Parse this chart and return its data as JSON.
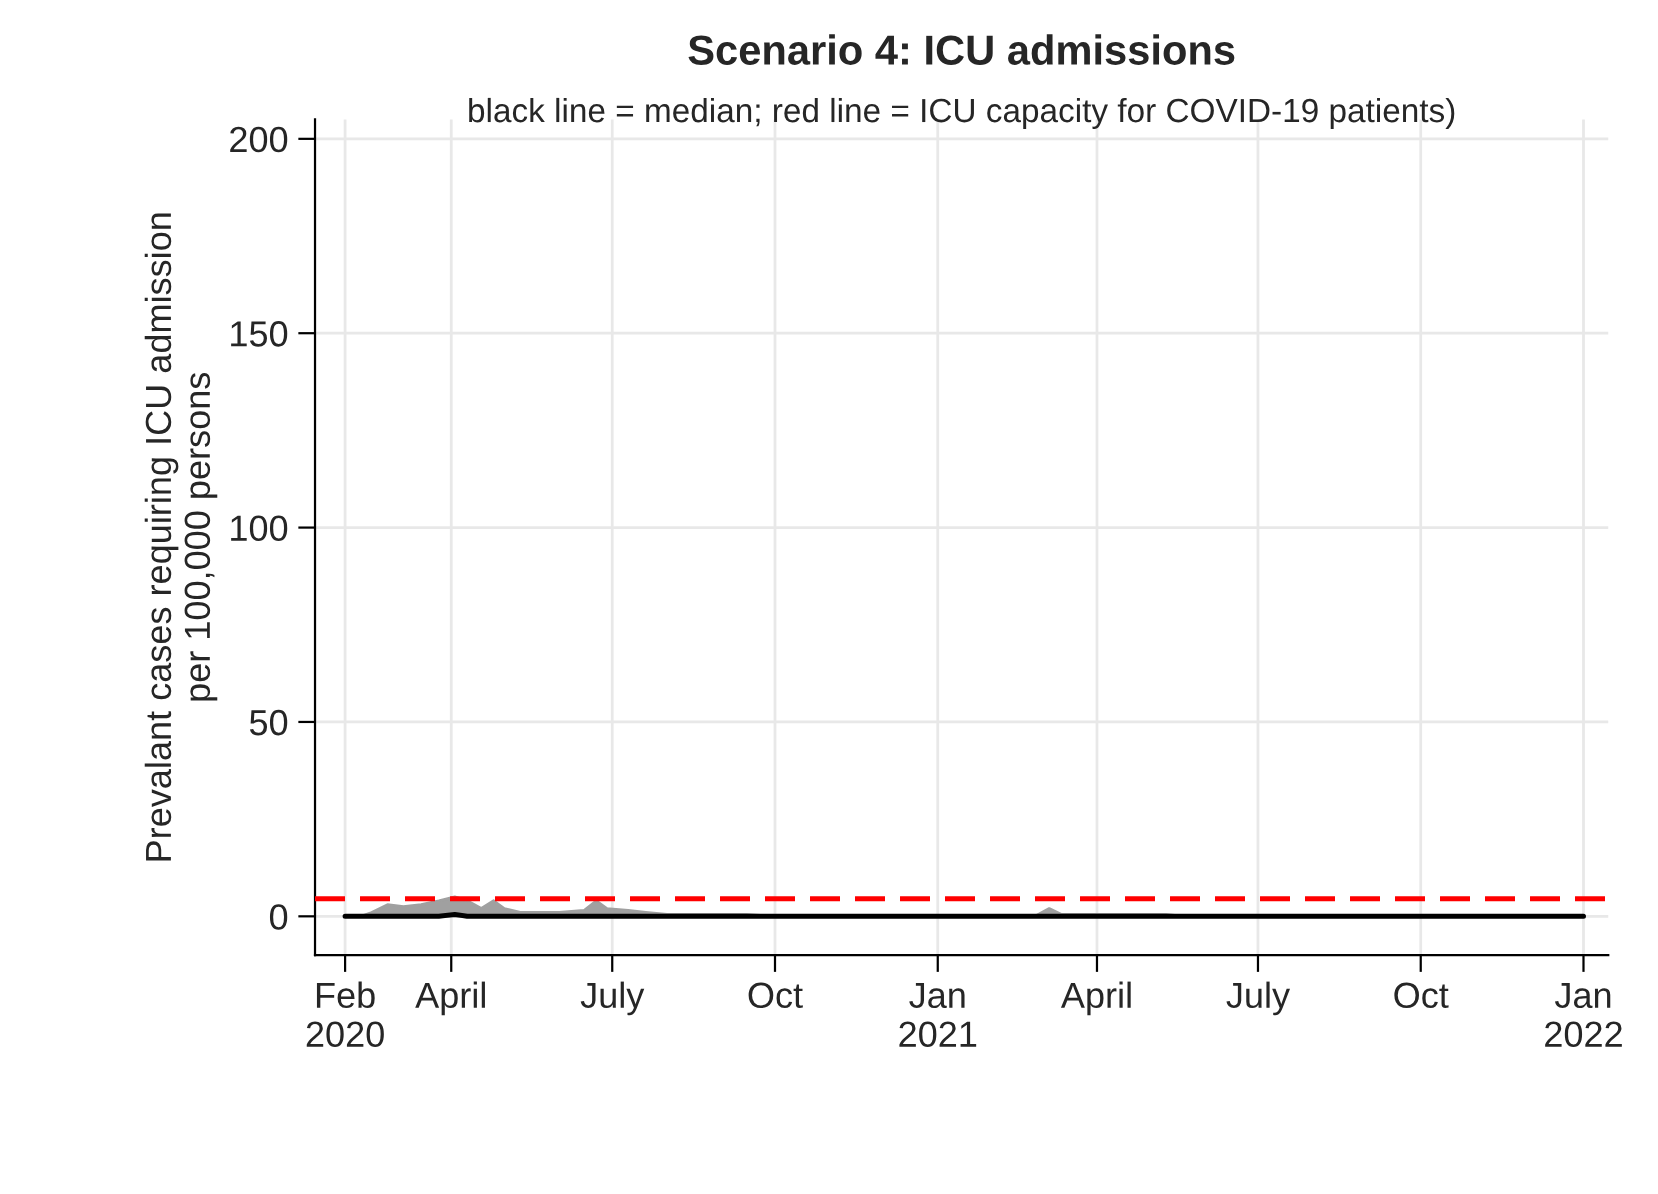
{
  "chart_data": {
    "type": "line",
    "title": "Scenario 4: ICU admissions",
    "subtitle": "black line = median; red line = ICU capacity for COVID-19 patients)",
    "ylabel": "Prevalant cases requiring ICU admission\nper 100,000 persons",
    "series": [
      {
        "color": "#000000",
        "x": [
          "2020-02-01",
          "2020-02-10",
          "2020-02-16",
          "2020-02-25",
          "2020-03-05",
          "2020-03-15",
          "2020-03-25",
          "2020-04-03",
          "2020-04-10",
          "2020-04-18",
          "2020-04-25",
          "2020-05-01",
          "2020-05-10",
          "2020-06-01",
          "2020-06-15",
          "2020-06-22",
          "2020-06-28",
          "2020-07-10",
          "2020-07-20",
          "2020-08-01",
          "2020-08-15",
          "2020-09-15",
          "2020-10-01",
          "2021-02-25",
          "2021-03-05",
          "2021-03-12",
          "2021-05-10",
          "2021-05-20",
          "2022-01-01"
        ],
        "values": [
          0,
          0,
          0,
          0,
          0,
          0,
          0,
          0.5,
          0,
          0,
          0,
          0,
          0,
          0,
          0,
          0,
          0,
          0,
          0,
          0,
          0,
          0,
          0,
          0,
          0,
          0,
          0,
          0,
          0
        ],
        "lower": [
          0,
          0,
          0,
          0,
          0,
          0,
          0,
          0,
          0,
          0,
          0,
          0,
          0,
          0,
          0,
          0,
          0,
          0,
          0,
          0,
          0,
          0,
          0,
          0,
          0,
          0,
          0,
          0,
          0
        ],
        "upper": [
          0,
          0,
          1,
          3,
          2.5,
          3,
          4,
          5,
          4,
          2,
          4,
          2,
          1,
          1,
          1.5,
          4,
          2,
          1.5,
          1,
          0.5,
          0.5,
          0.5,
          0,
          0,
          2,
          0.5,
          0.5,
          0,
          0
        ]
      }
    ],
    "ref_lines": [
      {
        "axis": "y",
        "value": 4.5,
        "color": "#ff0000",
        "line_style": "dashed"
      }
    ],
    "xlim": [
      "2020-01-15",
      "2022-01-15"
    ],
    "xticks": [
      {
        "value": "2020-02-01",
        "label": "Feb\n2020"
      },
      {
        "value": "2020-04-01",
        "label": "April"
      },
      {
        "value": "2020-07-01",
        "label": "July"
      },
      {
        "value": "2020-10-01",
        "label": "Oct"
      },
      {
        "value": "2021-01-01",
        "label": "Jan\n2021"
      },
      {
        "value": "2021-04-01",
        "label": "April"
      },
      {
        "value": "2021-07-01",
        "label": "July"
      },
      {
        "value": "2021-10-01",
        "label": "Oct"
      },
      {
        "value": "2022-01-01",
        "label": "Jan\n2022"
      }
    ],
    "ylim": [
      -10,
      205
    ],
    "yticks": [
      0,
      50,
      100,
      150,
      200
    ],
    "grid": true,
    "legend": false
  }
}
